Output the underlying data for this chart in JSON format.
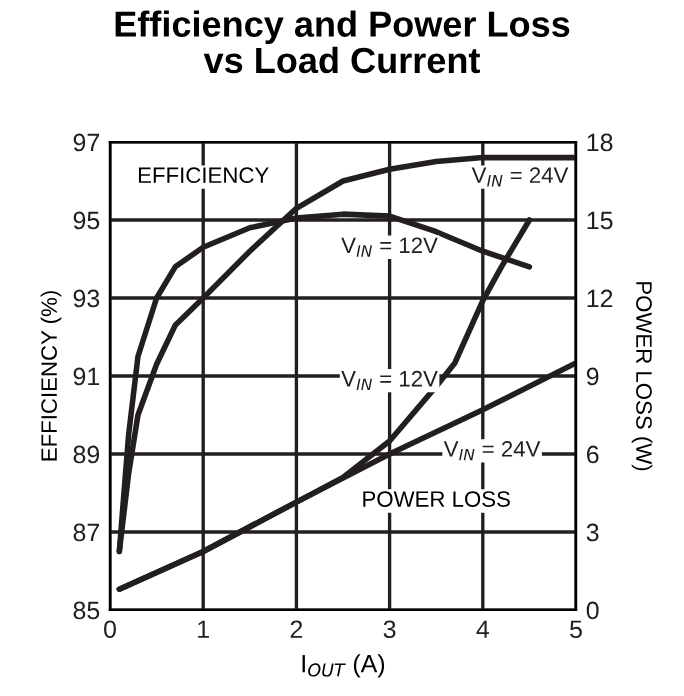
{
  "chart_data": {
    "type": "line",
    "title": "Efficiency and Power Loss\nvs Load Current",
    "xlabel": "I$_{OUT}$ (A)",
    "ylabel": "EFFICIENCY (%)",
    "y2label": "POWER LOSS (W)",
    "series": [
      {
        "name": "V$_{IN}$ = 12V",
        "x": [
          0.1,
          0.2,
          0.3,
          0.5,
          0.7,
          1,
          1.5,
          2,
          2.5,
          3,
          3.5,
          4,
          4.5
        ],
        "values": [
          86.5,
          89.5,
          91.5,
          93,
          93.8,
          94.3,
          94.8,
          95.05,
          95.15,
          95.1,
          94.7,
          94.2,
          93.8
        ],
        "color": "#231f20"
      },
      {
        "name": "V$_{IN}$ = 24V",
        "x": [
          0.1,
          0.2,
          0.3,
          0.5,
          0.7,
          1,
          1.5,
          2,
          2.5,
          3,
          3.5,
          4,
          4.5,
          5
        ],
        "values": [
          86.5,
          88.5,
          90,
          91.3,
          92.3,
          93,
          94.2,
          95.3,
          96,
          96.3,
          96.5,
          96.6,
          96.6,
          96.6
        ],
        "color": "#231f20"
      },
      {
        "name": "V$_{IN}$ = 12V",
        "x": [
          0.1,
          1,
          2,
          2.5,
          3,
          3.5,
          3.7,
          4,
          4.2,
          4.5
        ],
        "values": [
          0.8,
          2.25,
          4.15,
          5.1,
          6.5,
          8.6,
          9.5,
          11.9,
          13.2,
          15
        ],
        "color": "#231f20",
        "axis": "y2"
      },
      {
        "name": "V$_{IN}$ = 24V",
        "x": [
          0.1,
          1,
          2,
          3,
          4,
          5
        ],
        "values": [
          0.8,
          2.25,
          4.15,
          6,
          7.7,
          9.5
        ],
        "color": "#231f20",
        "axis": "y2"
      }
    ],
    "xlim": [
      0,
      5
    ],
    "xticks": [
      0,
      1,
      2,
      3,
      4,
      5
    ],
    "ylim": [
      85,
      97
    ],
    "yticks": [
      85,
      87,
      89,
      91,
      93,
      95,
      97
    ],
    "y2lim": [
      0,
      18
    ],
    "y2ticks": [
      0,
      3,
      6,
      9,
      12,
      15,
      18
    ],
    "grid": true,
    "marker": "none",
    "line_style": "solid",
    "annotations": [
      "EFFICIENCY",
      "POWER LOSS"
    ]
  }
}
